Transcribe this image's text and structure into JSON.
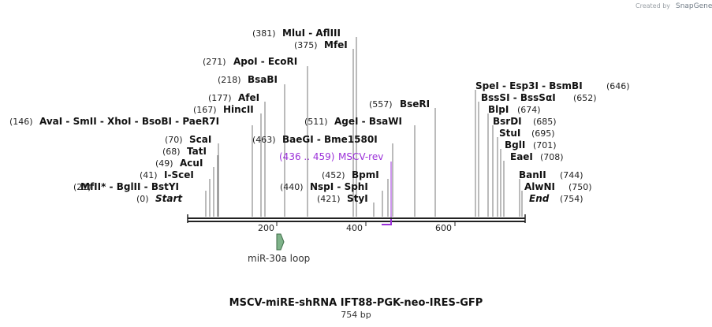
{
  "header": {
    "credit": "Created by",
    "brand": "SnapGene"
  },
  "map": {
    "title": "MSCV-miRE-shRNA IFT88-PGK-neo-IRES-GFP",
    "length_label": "754 bp",
    "length": 754,
    "start_label": "Start",
    "end_label": "End",
    "start_pos": "(0)",
    "end_pos": "(754)"
  },
  "ticks": [
    "200",
    "400",
    "600"
  ],
  "sites": [
    {
      "pos": "(21)",
      "names": "MfII* - BglII - BstYI",
      "p": 21
    },
    {
      "pos": "(41)",
      "names": "I-SceI",
      "p": 41
    },
    {
      "pos": "(49)",
      "names": "AcuI",
      "p": 49
    },
    {
      "pos": "(68)",
      "names": "TatI",
      "p": 68
    },
    {
      "pos": "(70)",
      "names": "ScaI",
      "p": 70
    },
    {
      "pos": "(146)",
      "names": "AvaI - SmII - XhoI - BsoBI - PaeR7I",
      "p": 146
    },
    {
      "pos": "(167)",
      "names": "HincII",
      "p": 167
    },
    {
      "pos": "(177)",
      "names": "AfeI",
      "p": 177
    },
    {
      "pos": "(218)",
      "names": "BsaBI",
      "p": 218
    },
    {
      "pos": "(271)",
      "names": "ApoI - EcoRI",
      "p": 271
    },
    {
      "pos": "(375)",
      "names": "MfeI",
      "p": 375
    },
    {
      "pos": "(381)",
      "names": "MluI - AflIII",
      "p": 381
    },
    {
      "pos": "(421)",
      "names": "StyI",
      "p": 421
    },
    {
      "pos": "(440)",
      "names": "NspI - SphI",
      "p": 440
    },
    {
      "pos": "(452)",
      "names": "BpmI",
      "p": 452
    },
    {
      "pos": "(463)",
      "names": "BaeGI - Bme1580I",
      "p": 463
    },
    {
      "pos": "(511)",
      "names": "AgeI - BsaWI",
      "p": 511
    },
    {
      "pos": "(557)",
      "names": "BseRI",
      "p": 557
    },
    {
      "pos": "(646)",
      "names": "SpeI - Esp3I - BsmBI",
      "p": 646
    },
    {
      "pos": "(652)",
      "names": "BssSI - BssSαI",
      "p": 652
    },
    {
      "pos": "(674)",
      "names": "BlpI",
      "p": 674
    },
    {
      "pos": "(685)",
      "names": "BsrDI",
      "p": 685
    },
    {
      "pos": "(695)",
      "names": "StuI",
      "p": 695
    },
    {
      "pos": "(701)",
      "names": "BglI",
      "p": 701
    },
    {
      "pos": "(708)",
      "names": "EaeI",
      "p": 708
    },
    {
      "pos": "(744)",
      "names": "BanII",
      "p": 744
    },
    {
      "pos": "(750)",
      "names": "AlwNI",
      "p": 750
    }
  ],
  "primer": {
    "range": "(436 .. 459)",
    "name": "MSCV-rev",
    "start": 436,
    "end": 459
  },
  "feature": {
    "name": "miR-30a loop",
    "start": 200,
    "end": 206
  },
  "colors": {
    "primer": "#9b30d9",
    "feature_fill": "#7fb38a",
    "feature_stroke": "#3d6b47",
    "backbone": "#222222"
  }
}
